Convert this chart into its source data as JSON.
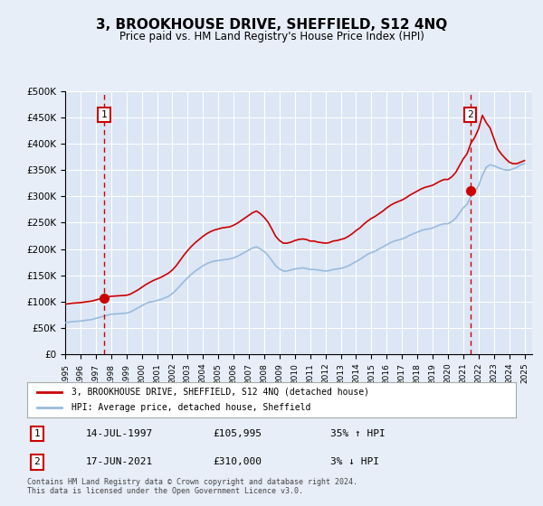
{
  "title": "3, BROOKHOUSE DRIVE, SHEFFIELD, S12 4NQ",
  "subtitle": "Price paid vs. HM Land Registry's House Price Index (HPI)",
  "legend_line1": "3, BROOKHOUSE DRIVE, SHEFFIELD, S12 4NQ (detached house)",
  "legend_line2": "HPI: Average price, detached house, Sheffield",
  "annotation1_label": "1",
  "annotation1_date": "14-JUL-1997",
  "annotation1_price": "£105,995",
  "annotation1_hpi": "35% ↑ HPI",
  "annotation1_year": 1997.54,
  "annotation1_value": 105995,
  "annotation2_label": "2",
  "annotation2_date": "17-JUN-2021",
  "annotation2_price": "£310,000",
  "annotation2_hpi": "3% ↓ HPI",
  "annotation2_year": 2021.46,
  "annotation2_value": 310000,
  "footer_line1": "Contains HM Land Registry data © Crown copyright and database right 2024.",
  "footer_line2": "This data is licensed under the Open Government Licence v3.0.",
  "ylim": [
    0,
    500000
  ],
  "yticks": [
    0,
    50000,
    100000,
    150000,
    200000,
    250000,
    300000,
    350000,
    400000,
    450000,
    500000
  ],
  "xlim_start": 1995.0,
  "xlim_end": 2025.5,
  "bg_color": "#e8eef8",
  "plot_bg": "#dce6f5",
  "red_color": "#cc0000",
  "blue_color": "#99bbdd",
  "grid_color": "#ffffff",
  "hpi_data_x": [
    1995.0,
    1995.25,
    1995.5,
    1995.75,
    1996.0,
    1996.25,
    1996.5,
    1996.75,
    1997.0,
    1997.25,
    1997.5,
    1997.75,
    1998.0,
    1998.25,
    1998.5,
    1998.75,
    1999.0,
    1999.25,
    1999.5,
    1999.75,
    2000.0,
    2000.25,
    2000.5,
    2000.75,
    2001.0,
    2001.25,
    2001.5,
    2001.75,
    2002.0,
    2002.25,
    2002.5,
    2002.75,
    2003.0,
    2003.25,
    2003.5,
    2003.75,
    2004.0,
    2004.25,
    2004.5,
    2004.75,
    2005.0,
    2005.25,
    2005.5,
    2005.75,
    2006.0,
    2006.25,
    2006.5,
    2006.75,
    2007.0,
    2007.25,
    2007.5,
    2007.75,
    2008.0,
    2008.25,
    2008.5,
    2008.75,
    2009.0,
    2009.25,
    2009.5,
    2009.75,
    2010.0,
    2010.25,
    2010.5,
    2010.75,
    2011.0,
    2011.25,
    2011.5,
    2011.75,
    2012.0,
    2012.25,
    2012.5,
    2012.75,
    2013.0,
    2013.25,
    2013.5,
    2013.75,
    2014.0,
    2014.25,
    2014.5,
    2014.75,
    2015.0,
    2015.25,
    2015.5,
    2015.75,
    2016.0,
    2016.25,
    2016.5,
    2016.75,
    2017.0,
    2017.25,
    2017.5,
    2017.75,
    2018.0,
    2018.25,
    2018.5,
    2018.75,
    2019.0,
    2019.25,
    2019.5,
    2019.75,
    2020.0,
    2020.25,
    2020.5,
    2020.75,
    2021.0,
    2021.25,
    2021.5,
    2021.75,
    2022.0,
    2022.25,
    2022.5,
    2022.75,
    2023.0,
    2023.25,
    2023.5,
    2023.75,
    2024.0,
    2024.25,
    2024.5,
    2024.75,
    2025.0
  ],
  "hpi_data_y": [
    60000,
    61000,
    62000,
    62500,
    63000,
    64000,
    65000,
    66000,
    68000,
    70000,
    72000,
    74000,
    76000,
    76500,
    77000,
    77500,
    78000,
    80000,
    84000,
    88000,
    92000,
    96000,
    99000,
    100000,
    102000,
    104000,
    107000,
    110000,
    115000,
    122000,
    130000,
    138000,
    145000,
    152000,
    158000,
    163000,
    168000,
    172000,
    175000,
    177000,
    178000,
    179000,
    180000,
    181000,
    183000,
    186000,
    190000,
    194000,
    198000,
    202000,
    204000,
    200000,
    195000,
    188000,
    178000,
    168000,
    162000,
    158000,
    158000,
    160000,
    162000,
    163000,
    164000,
    163000,
    161000,
    161000,
    160000,
    159000,
    158000,
    159000,
    161000,
    162000,
    163000,
    165000,
    168000,
    172000,
    176000,
    180000,
    185000,
    190000,
    193000,
    196000,
    200000,
    204000,
    208000,
    212000,
    215000,
    217000,
    219000,
    222000,
    226000,
    229000,
    232000,
    235000,
    237000,
    238000,
    240000,
    243000,
    246000,
    248000,
    248000,
    252000,
    258000,
    268000,
    278000,
    285000,
    300000,
    308000,
    320000,
    340000,
    355000,
    360000,
    358000,
    355000,
    352000,
    350000,
    350000,
    352000,
    355000,
    360000,
    362000
  ],
  "red_data_x": [
    1995.0,
    1995.25,
    1995.5,
    1995.75,
    1996.0,
    1996.25,
    1996.5,
    1996.75,
    1997.0,
    1997.25,
    1997.5,
    1997.75,
    1998.0,
    1998.25,
    1998.5,
    1998.75,
    1999.0,
    1999.25,
    1999.5,
    1999.75,
    2000.0,
    2000.25,
    2000.5,
    2000.75,
    2001.0,
    2001.25,
    2001.5,
    2001.75,
    2002.0,
    2002.25,
    2002.5,
    2002.75,
    2003.0,
    2003.25,
    2003.5,
    2003.75,
    2004.0,
    2004.25,
    2004.5,
    2004.75,
    2005.0,
    2005.25,
    2005.5,
    2005.75,
    2006.0,
    2006.25,
    2006.5,
    2006.75,
    2007.0,
    2007.25,
    2007.5,
    2007.75,
    2008.0,
    2008.25,
    2008.5,
    2008.75,
    2009.0,
    2009.25,
    2009.5,
    2009.75,
    2010.0,
    2010.25,
    2010.5,
    2010.75,
    2011.0,
    2011.25,
    2011.5,
    2011.75,
    2012.0,
    2012.25,
    2012.5,
    2012.75,
    2013.0,
    2013.25,
    2013.5,
    2013.75,
    2014.0,
    2014.25,
    2014.5,
    2014.75,
    2015.0,
    2015.25,
    2015.5,
    2015.75,
    2016.0,
    2016.25,
    2016.5,
    2016.75,
    2017.0,
    2017.25,
    2017.5,
    2017.75,
    2018.0,
    2018.25,
    2018.5,
    2018.75,
    2019.0,
    2019.25,
    2019.5,
    2019.75,
    2020.0,
    2020.25,
    2020.5,
    2020.75,
    2021.0,
    2021.25,
    2021.5,
    2021.75,
    2022.0,
    2022.25,
    2022.5,
    2022.75,
    2023.0,
    2023.25,
    2023.5,
    2023.75,
    2024.0,
    2024.25,
    2024.5,
    2024.75,
    2025.0
  ],
  "red_data_y": [
    95000,
    96000,
    97000,
    97500,
    98000,
    99000,
    100000,
    101000,
    103000,
    105000,
    107000,
    109000,
    110000,
    110500,
    111000,
    111500,
    112000,
    114000,
    118000,
    122000,
    127000,
    132000,
    136000,
    140000,
    143000,
    146000,
    150000,
    154000,
    160000,
    168000,
    178000,
    188000,
    197000,
    205000,
    212000,
    218000,
    224000,
    229000,
    233000,
    236000,
    238000,
    240000,
    241000,
    242000,
    245000,
    249000,
    254000,
    259000,
    264000,
    269000,
    272000,
    267000,
    260000,
    251000,
    238000,
    224000,
    216000,
    211000,
    211000,
    213000,
    216000,
    218000,
    219000,
    218000,
    215000,
    215000,
    213000,
    212000,
    211000,
    212000,
    215000,
    216000,
    218000,
    220000,
    224000,
    229000,
    235000,
    240000,
    247000,
    253000,
    258000,
    262000,
    267000,
    272000,
    278000,
    283000,
    287000,
    290000,
    293000,
    297000,
    302000,
    306000,
    310000,
    314000,
    317000,
    319000,
    321000,
    325000,
    329000,
    332000,
    332000,
    337000,
    345000,
    358000,
    371000,
    381000,
    401000,
    412000,
    428000,
    454000,
    440000,
    430000,
    410000,
    390000,
    380000,
    372000,
    365000,
    362000,
    362000,
    365000,
    368000
  ]
}
